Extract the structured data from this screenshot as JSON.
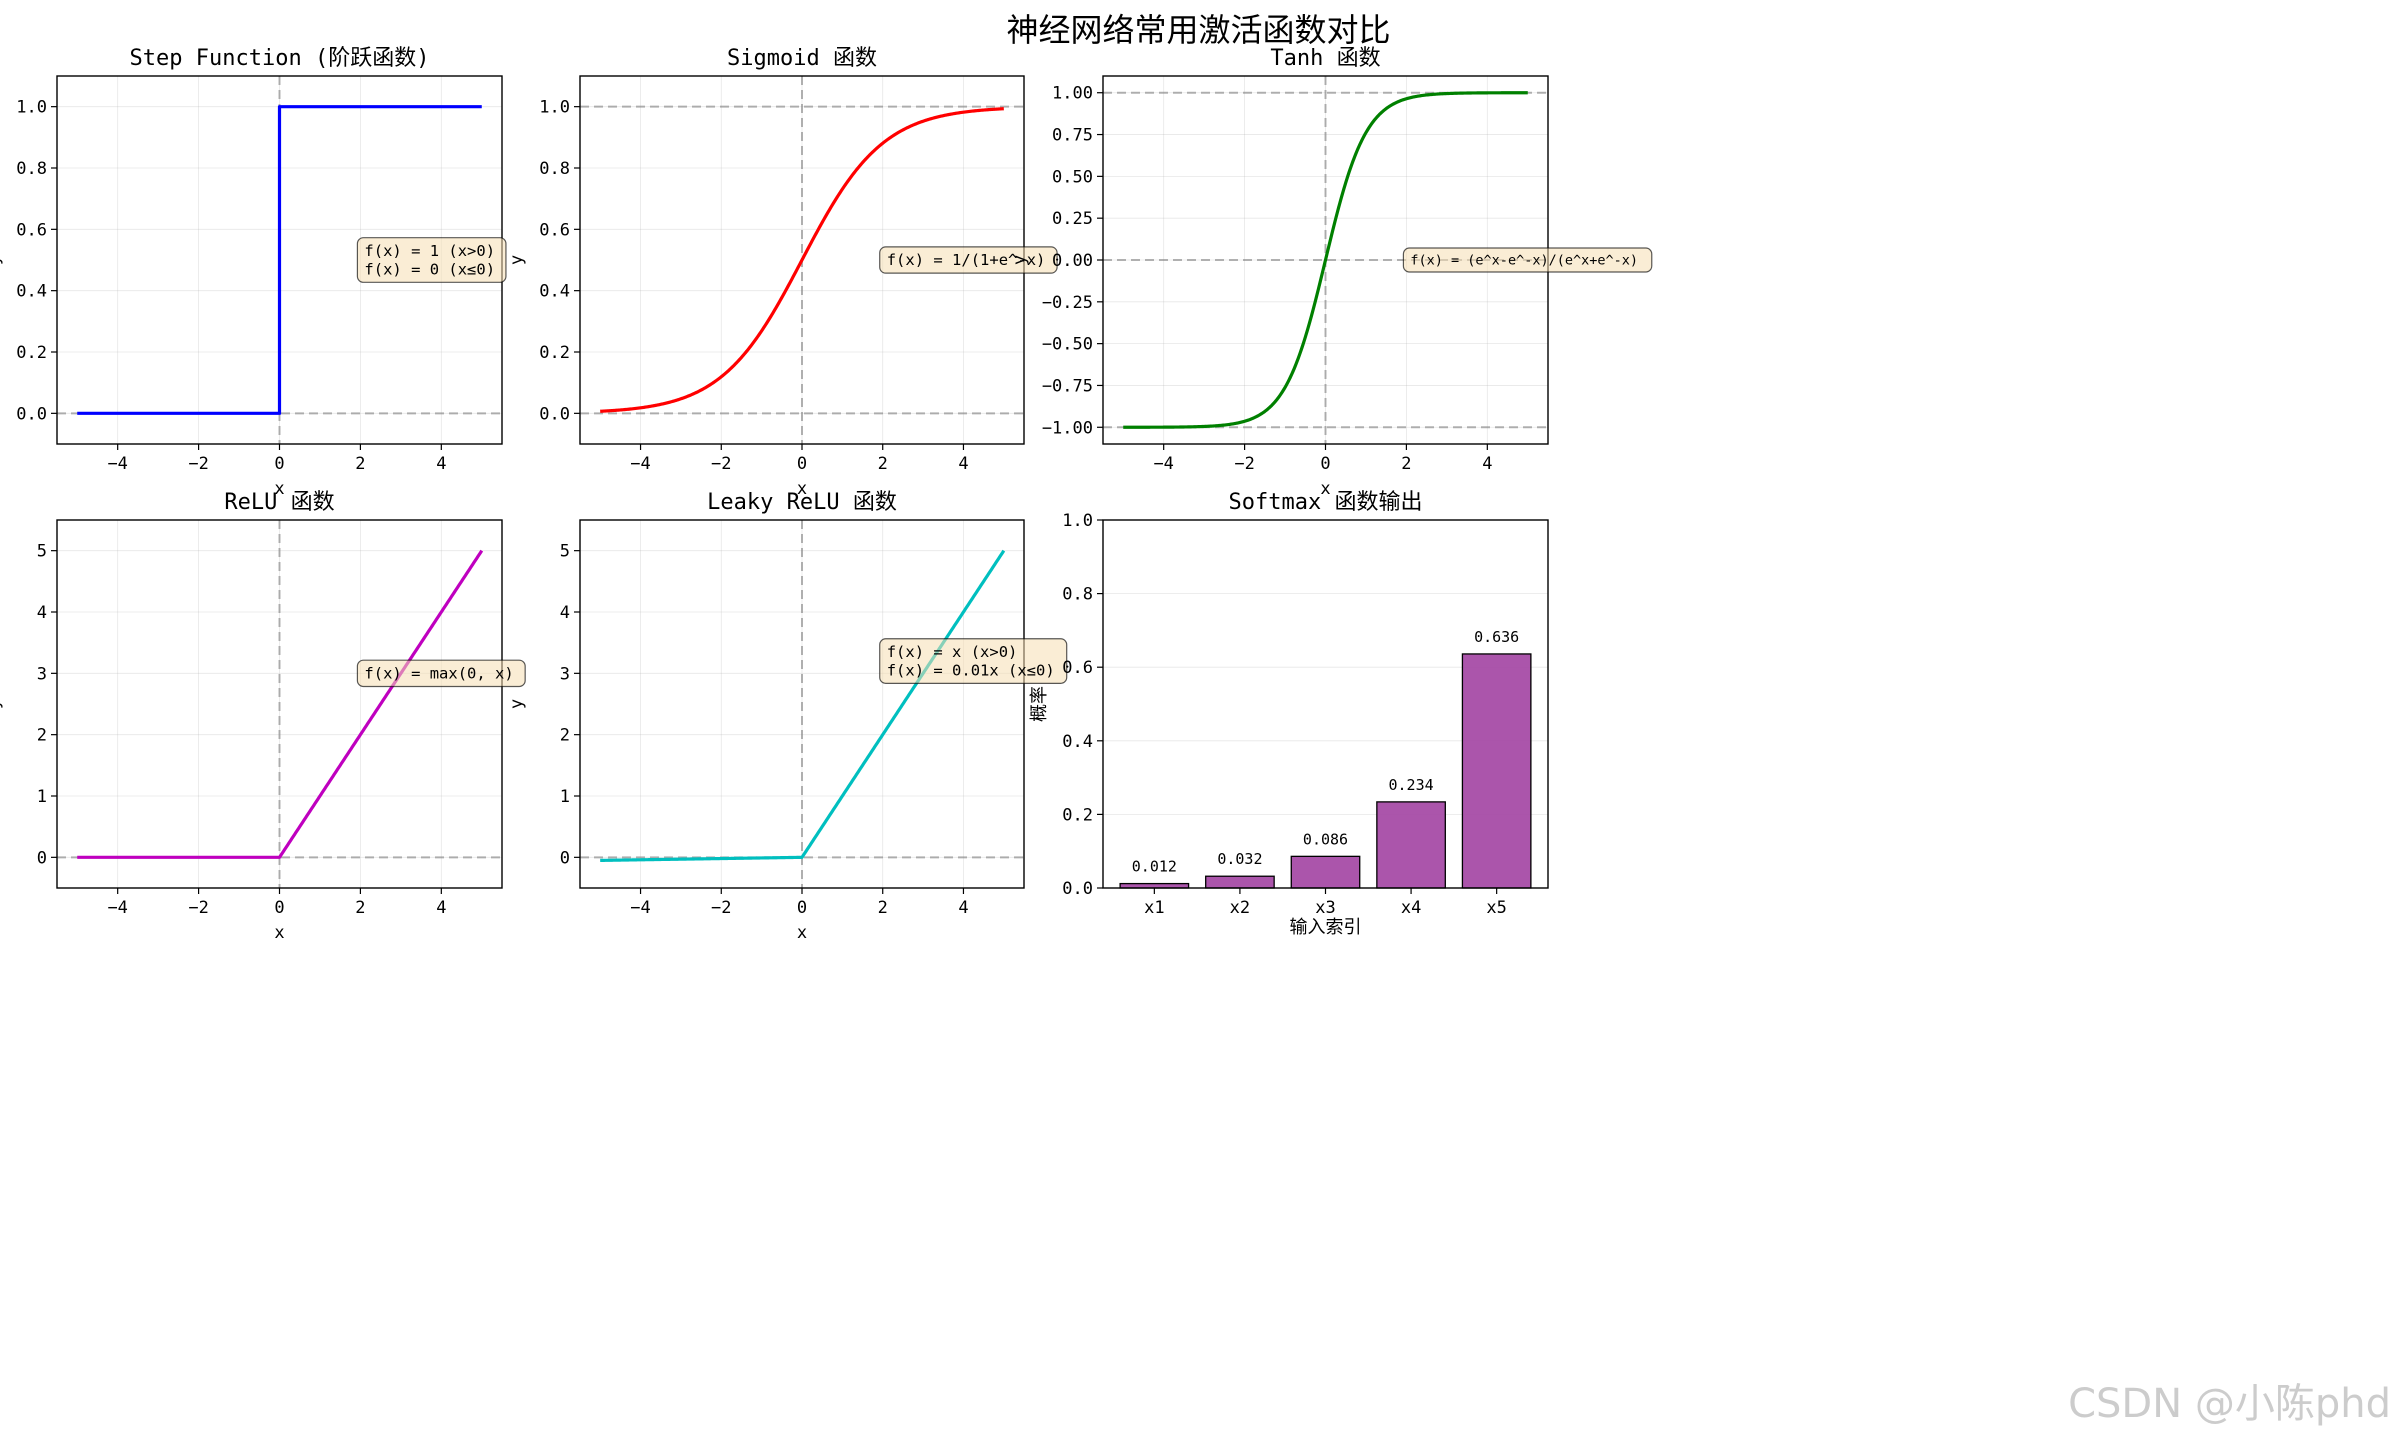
{
  "figure_title": "神经网络常用激活函数对比",
  "watermark": "CSDN @小陈phd",
  "chart_data": [
    {
      "type": "line",
      "title": "Step Function (阶跃函数)",
      "xlabel": "x",
      "ylabel": "y",
      "xlim": [
        -5.5,
        5.5
      ],
      "ylim": [
        -0.1,
        1.1
      ],
      "xticks": [
        -4,
        -2,
        0,
        2,
        4
      ],
      "xtick_labels": [
        "−4",
        "−2",
        "0",
        "2",
        "4"
      ],
      "yticks": [
        0.0,
        0.2,
        0.4,
        0.6,
        0.8,
        1.0
      ],
      "ytick_labels": [
        "0.0",
        "0.2",
        "0.4",
        "0.6",
        "0.8",
        "1.0"
      ],
      "grid": true,
      "function": "step",
      "x_range": [
        -5,
        5
      ],
      "series": [
        {
          "values_desc": "",
          "color": "#0000ff",
          "x": [
            -5,
            0,
            0,
            5
          ],
          "y": [
            0,
            0,
            1,
            1
          ]
        }
      ],
      "hlines": [
        0
      ],
      "vlines": [
        0
      ],
      "annotation": [
        "f(x) = 1 (x>0)",
        "f(x) = 0 (x≤0)"
      ],
      "annotation_pos": [
        2,
        0.5
      ]
    },
    {
      "type": "line",
      "title": "Sigmoid 函数",
      "xlabel": "x",
      "ylabel": "y",
      "xlim": [
        -5.5,
        5.5
      ],
      "ylim": [
        -0.1,
        1.1
      ],
      "xticks": [
        -4,
        -2,
        0,
        2,
        4
      ],
      "xtick_labels": [
        "−4",
        "−2",
        "0",
        "2",
        "4"
      ],
      "yticks": [
        0.0,
        0.2,
        0.4,
        0.6,
        0.8,
        1.0
      ],
      "ytick_labels": [
        "0.0",
        "0.2",
        "0.4",
        "0.6",
        "0.8",
        "1.0"
      ],
      "grid": true,
      "function": "sigmoid",
      "x_range": [
        -5,
        5
      ],
      "series": [
        {
          "color": "#ff0000"
        }
      ],
      "hlines": [
        0,
        1
      ],
      "vlines": [
        0
      ],
      "annotation": [
        "f(x) = 1/(1+e^-x)"
      ],
      "annotation_pos": [
        2,
        0.5
      ]
    },
    {
      "type": "line",
      "title": "Tanh 函数",
      "xlabel": "x",
      "ylabel": "y",
      "xlim": [
        -5.5,
        5.5
      ],
      "ylim": [
        -1.1,
        1.1
      ],
      "xticks": [
        -4,
        -2,
        0,
        2,
        4
      ],
      "xtick_labels": [
        "−4",
        "−2",
        "0",
        "2",
        "4"
      ],
      "yticks": [
        -1.0,
        -0.75,
        -0.5,
        -0.25,
        0.0,
        0.25,
        0.5,
        0.75,
        1.0
      ],
      "ytick_labels": [
        "−1.00",
        "−0.75",
        "−0.50",
        "−0.25",
        "0.00",
        "0.25",
        "0.50",
        "0.75",
        "1.00"
      ],
      "grid": true,
      "function": "tanh",
      "x_range": [
        -5,
        5
      ],
      "series": [
        {
          "color": "#008000"
        }
      ],
      "hlines": [
        -1,
        0,
        1
      ],
      "vlines": [
        0
      ],
      "annotation": [
        "f(x) = (e^x-e^-x)/(e^x+e^-x)"
      ],
      "annotation_pos": [
        2,
        0
      ]
    },
    {
      "type": "line",
      "title": "ReLU 函数",
      "xlabel": "x",
      "ylabel": "y",
      "xlim": [
        -5.5,
        5.5
      ],
      "ylim": [
        -0.5,
        5.5
      ],
      "xticks": [
        -4,
        -2,
        0,
        2,
        4
      ],
      "xtick_labels": [
        "−4",
        "−2",
        "0",
        "2",
        "4"
      ],
      "yticks": [
        0,
        1,
        2,
        3,
        4,
        5
      ],
      "ytick_labels": [
        "0",
        "1",
        "2",
        "3",
        "4",
        "5"
      ],
      "grid": true,
      "function": "relu",
      "x_range": [
        -5,
        5
      ],
      "series": [
        {
          "color": "#bf00bf"
        }
      ],
      "hlines": [
        0
      ],
      "vlines": [
        0
      ],
      "annotation": [
        "f(x) = max(0, x)"
      ],
      "annotation_pos": [
        2,
        3
      ]
    },
    {
      "type": "line",
      "title": "Leaky ReLU 函数",
      "xlabel": "x",
      "ylabel": "y",
      "xlim": [
        -5.5,
        5.5
      ],
      "ylim": [
        -0.5,
        5.5
      ],
      "xticks": [
        -4,
        -2,
        0,
        2,
        4
      ],
      "xtick_labels": [
        "−4",
        "−2",
        "0",
        "2",
        "4"
      ],
      "yticks": [
        0,
        1,
        2,
        3,
        4,
        5
      ],
      "ytick_labels": [
        "0",
        "1",
        "2",
        "3",
        "4",
        "5"
      ],
      "grid": true,
      "function": "leaky_relu",
      "alpha": 0.01,
      "x_range": [
        -5,
        5
      ],
      "series": [
        {
          "color": "#00bfbf"
        }
      ],
      "hlines": [
        0
      ],
      "vlines": [
        0
      ],
      "annotation": [
        "f(x) = x (x>0)",
        "f(x) = 0.01x (x≤0)"
      ],
      "annotation_pos": [
        2,
        3.2
      ]
    },
    {
      "type": "bar",
      "title": "Softmax 函数输出",
      "xlabel": "输入索引",
      "ylabel": "概率",
      "categories": [
        "x1",
        "x2",
        "x3",
        "x4",
        "x5"
      ],
      "values": [
        0.012,
        0.032,
        0.086,
        0.234,
        0.636
      ],
      "value_labels": [
        "0.012",
        "0.032",
        "0.086",
        "0.234",
        "0.636"
      ],
      "ylim": [
        0,
        1
      ],
      "yticks": [
        0.0,
        0.2,
        0.4,
        0.6,
        0.8,
        1.0
      ],
      "ytick_labels": [
        "0.0",
        "0.2",
        "0.4",
        "0.6",
        "0.8",
        "1.0"
      ],
      "grid": "y",
      "bar_color": "#a64ca6",
      "bar_edge": "#000000"
    }
  ]
}
